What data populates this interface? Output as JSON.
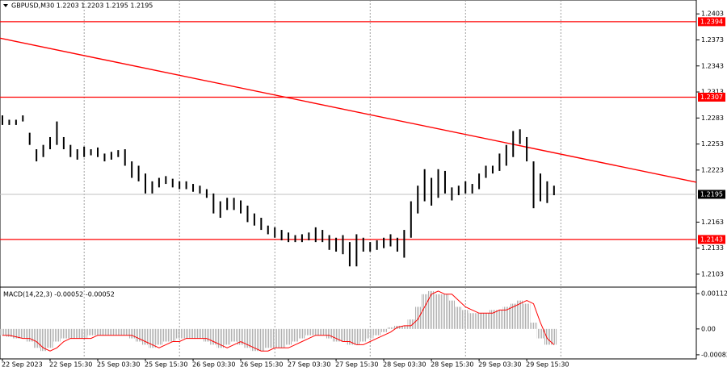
{
  "chart_data": [
    {
      "type": "range-bar",
      "title": "GBPUSD,M30  1.2203 1.2203 1.2195 1.2195",
      "color": "#000000",
      "categories": [
        "22 Sep 2023",
        null,
        null,
        null,
        null,
        null,
        null,
        "22 Sep 15:30",
        null,
        null,
        null,
        null,
        null,
        null,
        "25 Sep 03:30",
        null,
        null,
        null,
        null,
        null,
        null,
        "25 Sep 15:30",
        null,
        null,
        null,
        null,
        null,
        null,
        "26 Sep 03:30",
        null,
        null,
        null,
        null,
        null,
        null,
        "26 Sep 15:30",
        null,
        null,
        null,
        null,
        null,
        null,
        "27 Sep 03:30",
        null,
        null,
        null,
        null,
        null,
        null,
        "27 Sep 15:30",
        null,
        null,
        null,
        null,
        null,
        null,
        "28 Sep 03:30",
        null,
        null,
        null,
        null,
        null,
        null,
        "28 Sep 15:30",
        null,
        null,
        null,
        null,
        null,
        null,
        "29 Sep 03:30",
        null,
        null,
        null,
        null,
        null,
        null,
        "29 Sep 15:30",
        null,
        null,
        null,
        null
      ],
      "high": [
        1.2286,
        1.2281,
        1.2281,
        1.2286,
        1.2266,
        1.2247,
        1.2252,
        1.2261,
        1.2279,
        1.2261,
        1.2252,
        1.2247,
        1.225,
        1.2247,
        1.2249,
        1.2242,
        1.2244,
        1.2246,
        1.2247,
        1.2233,
        1.2228,
        1.2219,
        1.221,
        1.2214,
        1.2216,
        1.2213,
        1.221,
        1.221,
        1.2207,
        1.2205,
        1.2201,
        1.2196,
        1.2187,
        1.2191,
        1.2191,
        1.2188,
        1.2182,
        1.2173,
        1.2168,
        1.2159,
        1.2157,
        1.2154,
        1.2151,
        1.2148,
        1.2149,
        1.2151,
        1.2157,
        1.2154,
        1.2148,
        1.2145,
        1.2148,
        1.214,
        1.2149,
        1.2145,
        1.214,
        1.2142,
        1.2145,
        1.2149,
        1.2145,
        1.2154,
        1.2187,
        1.2205,
        1.2224,
        1.2214,
        1.2224,
        1.2222,
        1.2203,
        1.2205,
        1.221,
        1.2207,
        1.2219,
        1.2228,
        1.2228,
        1.2242,
        1.2252,
        1.2268,
        1.227,
        1.2261,
        1.2233,
        1.2219,
        1.221,
        1.2205
      ],
      "low": [
        1.2275,
        1.2275,
        1.2275,
        1.2279,
        1.2252,
        1.2233,
        1.2238,
        1.2247,
        1.2252,
        1.2247,
        1.2238,
        1.2235,
        1.2238,
        1.224,
        1.2238,
        1.2233,
        1.2235,
        1.2238,
        1.2228,
        1.2214,
        1.221,
        1.2196,
        1.2196,
        1.2203,
        1.2207,
        1.2203,
        1.2201,
        1.2201,
        1.2198,
        1.2196,
        1.2191,
        1.2173,
        1.2168,
        1.2177,
        1.2177,
        1.2173,
        1.2163,
        1.2159,
        1.2154,
        1.2149,
        1.2145,
        1.2142,
        1.214,
        1.214,
        1.214,
        1.2142,
        1.214,
        1.214,
        1.2131,
        1.2129,
        1.2126,
        1.2112,
        1.2112,
        1.2129,
        1.2129,
        1.2131,
        1.2133,
        1.2135,
        1.2129,
        1.2122,
        1.2145,
        1.2173,
        1.2187,
        1.2182,
        1.2191,
        1.2196,
        1.2188,
        1.2194,
        1.2196,
        1.2196,
        1.2201,
        1.2214,
        1.2219,
        1.2222,
        1.2228,
        1.2238,
        1.2253,
        1.2233,
        1.2179,
        1.2187,
        1.2185,
        1.2194
      ],
      "ylim": [
        1.2089,
        1.2419
      ],
      "yticks": [
        1.2403,
        1.2373,
        1.2343,
        1.2313,
        1.2283,
        1.2253,
        1.2223,
        1.2163,
        1.2133,
        1.2103
      ],
      "levels": [
        {
          "value": 1.2394,
          "color": "#ff0000"
        },
        {
          "value": 1.2307,
          "color": "#ff0000"
        },
        {
          "value": 1.2143,
          "color": "#ff0000"
        }
      ],
      "current_price": 1.2195,
      "trendline": {
        "start": 1.2375,
        "end": 1.2209,
        "color": "#ff0000"
      }
    },
    {
      "type": "macd",
      "title": "MACD(14,22,3) -0.00052 -0.00052",
      "color": "#c0c0c0",
      "signal_color": "#ff0000",
      "values": [
        -0.0002,
        -0.00025,
        -0.0003,
        -0.0003,
        -0.0004,
        -0.0006,
        -0.0007,
        -0.0006,
        -0.0004,
        -0.0003,
        -0.0003,
        -0.0003,
        -0.0003,
        -0.0002,
        -0.0002,
        -0.0002,
        -0.0002,
        -0.0002,
        -0.0002,
        -0.0003,
        -0.0004,
        -0.0005,
        -0.0006,
        -0.0005,
        -0.0004,
        -0.0004,
        -0.0003,
        -0.0003,
        -0.0003,
        -0.0003,
        -0.0004,
        -0.0005,
        -0.0006,
        -0.0005,
        -0.0004,
        -0.0005,
        -0.0006,
        -0.0007,
        -0.0007,
        -0.0006,
        -0.0006,
        -0.0006,
        -0.0005,
        -0.0004,
        -0.0003,
        -0.0002,
        -0.0002,
        -0.0002,
        -0.0003,
        -0.0004,
        -0.0004,
        -0.0005,
        -0.0005,
        -0.0004,
        -0.0003,
        -0.0002,
        -0.0001,
        5e-05,
        0.0001,
        0.0001,
        0.0003,
        0.0007,
        0.0011,
        0.0012,
        0.0011,
        0.0011,
        0.0009,
        0.0007,
        0.0006,
        0.0005,
        0.0005,
        0.0005,
        0.0006,
        0.0006,
        0.0007,
        0.0008,
        0.0009,
        0.0008,
        0.0002,
        -0.0003,
        -0.0005,
        -0.0005
      ],
      "signal": [
        -0.0002,
        -0.0002,
        -0.00025,
        -0.0003,
        -0.0003,
        -0.0004,
        -0.0006,
        -0.0007,
        -0.0006,
        -0.0004,
        -0.0003,
        -0.0003,
        -0.0003,
        -0.0003,
        -0.0002,
        -0.0002,
        -0.0002,
        -0.0002,
        -0.0002,
        -0.0002,
        -0.0003,
        -0.0004,
        -0.0005,
        -0.0006,
        -0.0005,
        -0.0004,
        -0.0004,
        -0.0003,
        -0.0003,
        -0.0003,
        -0.0003,
        -0.0004,
        -0.0005,
        -0.0006,
        -0.0005,
        -0.0004,
        -0.0005,
        -0.0006,
        -0.0007,
        -0.0007,
        -0.0006,
        -0.0006,
        -0.0006,
        -0.0005,
        -0.0004,
        -0.0003,
        -0.0002,
        -0.0002,
        -0.0002,
        -0.0003,
        -0.0004,
        -0.0004,
        -0.0005,
        -0.0005,
        -0.0004,
        -0.0003,
        -0.0002,
        -0.0001,
        5e-05,
        0.0001,
        0.0001,
        0.0003,
        0.0007,
        0.0011,
        0.0012,
        0.0011,
        0.0011,
        0.0009,
        0.0007,
        0.0006,
        0.0005,
        0.0005,
        0.0005,
        0.0006,
        0.0006,
        0.0007,
        0.0008,
        0.0009,
        0.0008,
        0.0002,
        -0.0003,
        -0.0005
      ],
      "ylim": [
        -0.00095,
        0.0013
      ],
      "yticks": [
        0.00112,
        {
          "value": 0,
          "label": "0.00"
        },
        -0.00082
      ]
    }
  ]
}
